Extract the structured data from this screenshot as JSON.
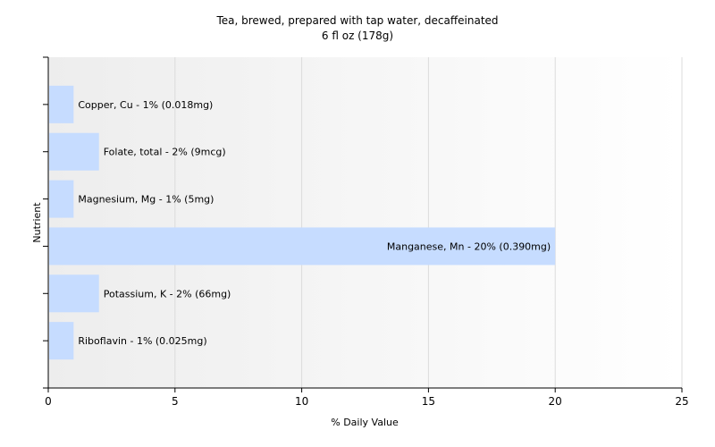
{
  "chart_data": {
    "type": "bar",
    "orientation": "horizontal",
    "title": "Tea, brewed, prepared with tap water, decaffeinated",
    "subtitle": "6 fl oz (178g)",
    "xlabel": "% Daily Value",
    "ylabel": "Nutrient",
    "xlim": [
      0,
      25
    ],
    "xticks": [
      "0",
      "5",
      "10",
      "15",
      "20",
      "25"
    ],
    "grid": true,
    "bar_color": "#c6dcff",
    "categories": [
      "Copper, Cu - 1% (0.018mg)",
      "Folate, total - 2% (9mcg)",
      "Magnesium, Mg - 1% (5mg)",
      "Manganese, Mn - 20% (0.390mg)",
      "Potassium, K - 2% (66mg)",
      "Riboflavin - 1% (0.025mg)"
    ],
    "values": [
      1,
      2,
      1,
      20,
      2,
      1
    ]
  }
}
